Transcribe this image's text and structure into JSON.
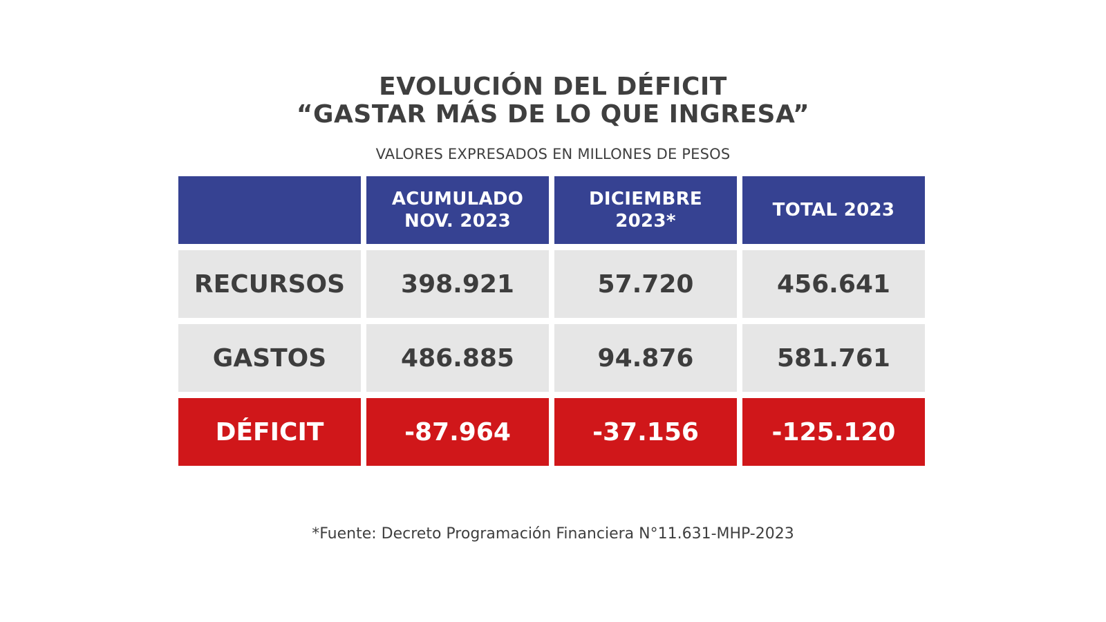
{
  "title_line1": "EVOLUCIÓN DEL DÉFICIT",
  "title_line2": "“GASTAR MÁS DE LO QUE INGRESA”",
  "subtitle": "VALORES EXPRESADOS EN MILLONES DE PESOS",
  "footnote": "*Fuente: Decreto Programación Financiera N°11.631-MHP-2023",
  "colors": {
    "header": "#364292",
    "row": "#e6e6e6",
    "deficit": "#d0171a"
  },
  "chart_data": {
    "type": "table",
    "columns": [
      {
        "line1": "ACUMULADO",
        "line2": "NOV. 2023"
      },
      {
        "line1": "DICIEMBRE",
        "line2": "2023*"
      },
      {
        "line1": "TOTAL 2023",
        "line2": ""
      }
    ],
    "rows": [
      {
        "label": "RECURSOS",
        "values": [
          "398.921",
          "57.720",
          "456.641"
        ]
      },
      {
        "label": "GASTOS",
        "values": [
          "486.885",
          "94.876",
          "581.761"
        ]
      },
      {
        "label": "DÉFICIT",
        "values": [
          "-87.964",
          "-37.156",
          "-125.120"
        ]
      }
    ]
  }
}
